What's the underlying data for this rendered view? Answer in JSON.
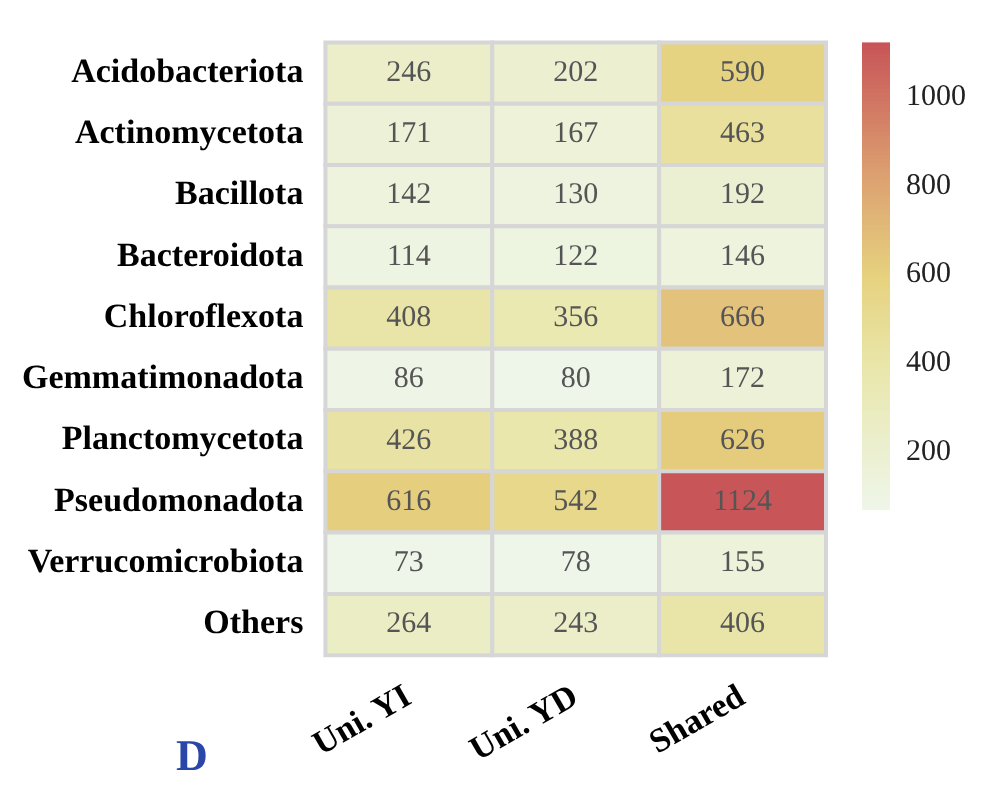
{
  "chart_data": {
    "type": "heatmap",
    "categories": [
      "Uni. YI",
      "Uni. YD",
      "Shared"
    ],
    "y_categories": [
      "Acidobacteriota",
      "Actinomycetota",
      "Bacillota",
      "Bacteroidota",
      "Chloroflexota",
      "Gemmatimonadota",
      "Planctomycetota",
      "Pseudomonadota",
      "Verrucomicrobiota",
      "Others"
    ],
    "cells": [
      [
        246,
        202,
        590
      ],
      [
        171,
        167,
        463
      ],
      [
        142,
        130,
        192
      ],
      [
        114,
        122,
        146
      ],
      [
        408,
        356,
        666
      ],
      [
        86,
        80,
        172
      ],
      [
        426,
        388,
        626
      ],
      [
        616,
        542,
        1124
      ],
      [
        73,
        78,
        155
      ],
      [
        264,
        243,
        406
      ]
    ],
    "data_labels": true,
    "clim": [
      73,
      1124
    ],
    "cticks": [
      200,
      400,
      600,
      800,
      1000
    ],
    "annotations": [
      "D"
    ]
  }
}
